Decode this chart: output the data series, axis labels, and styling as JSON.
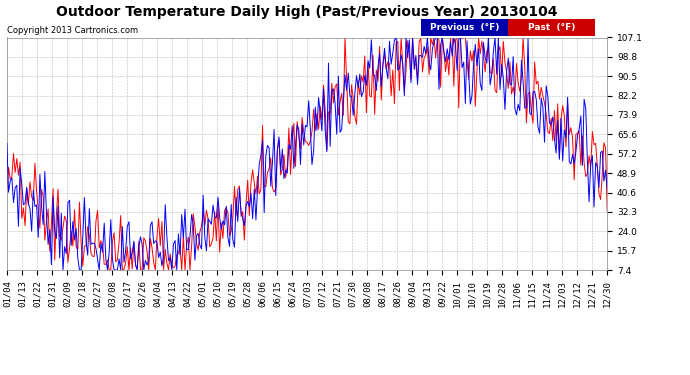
{
  "title": "Outdoor Temperature Daily High (Past/Previous Year) 20130104",
  "copyright": "Copyright 2013 Cartronics.com",
  "legend_labels": [
    "Previous  (°F)",
    "Past  (°F)"
  ],
  "legend_colors": [
    "#0000ff",
    "#ff0000"
  ],
  "legend_bg_colors": [
    "#0000aa",
    "#cc0000"
  ],
  "yticks": [
    7.4,
    15.7,
    24.0,
    32.3,
    40.6,
    48.9,
    57.2,
    65.6,
    73.9,
    82.2,
    90.5,
    98.8,
    107.1
  ],
  "ylim": [
    7.4,
    107.1
  ],
  "bg_color": "#ffffff",
  "plot_bg_color": "#ffffff",
  "grid_color": "#bbbbbb",
  "title_fontsize": 10,
  "copyright_fontsize": 6,
  "tick_fontsize": 6.5,
  "xtick_labels": [
    "01/04",
    "01/13",
    "01/22",
    "01/31",
    "02/09",
    "02/18",
    "02/27",
    "03/08",
    "03/17",
    "03/26",
    "04/04",
    "04/13",
    "04/22",
    "05/01",
    "05/10",
    "05/19",
    "05/28",
    "06/06",
    "06/15",
    "06/24",
    "07/03",
    "07/12",
    "07/21",
    "07/30",
    "08/08",
    "08/17",
    "08/26",
    "09/04",
    "09/13",
    "09/22",
    "10/01",
    "10/10",
    "10/19",
    "10/28",
    "11/06",
    "11/15",
    "11/24",
    "12/03",
    "12/12",
    "12/21",
    "12/30"
  ]
}
